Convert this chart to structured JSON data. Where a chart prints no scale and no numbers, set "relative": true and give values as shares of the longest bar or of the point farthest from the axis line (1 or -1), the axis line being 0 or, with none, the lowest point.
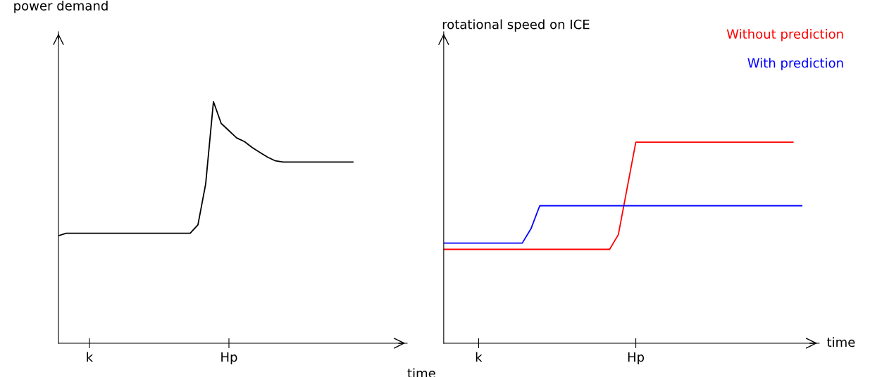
{
  "chart_data": [
    {
      "type": "line",
      "relative": true,
      "ylabel": "power demand",
      "xlabel": "time",
      "grid": false,
      "legend": false,
      "marker": "none",
      "line_style": "solid",
      "categories": [
        null,
        null,
        null,
        null,
        "k",
        null,
        null,
        null,
        null,
        null,
        null,
        null,
        null,
        null,
        null,
        null,
        null,
        null,
        null,
        null,
        null,
        null,
        "Hp",
        null,
        null,
        null,
        null,
        null,
        null,
        null,
        null,
        null,
        null,
        null,
        null,
        null,
        null,
        null,
        null,
        null,
        null,
        null,
        null,
        null,
        null,
        null
      ],
      "series": [
        {
          "color": "#000000",
          "values": [
            0.445,
            0.455,
            0.455,
            0.455,
            0.455,
            0.455,
            0.455,
            0.455,
            0.455,
            0.455,
            0.455,
            0.455,
            0.455,
            0.455,
            0.455,
            0.455,
            0.455,
            0.455,
            0.49,
            0.66,
            1.0,
            0.91,
            0.88,
            0.85,
            0.835,
            0.81,
            0.79,
            0.77,
            0.755,
            0.75,
            0.75,
            0.75,
            0.75,
            0.75,
            0.75,
            0.75,
            0.75,
            0.75,
            0.75,
            null,
            null,
            null,
            null,
            null,
            null,
            null
          ]
        }
      ]
    },
    {
      "type": "line",
      "relative": true,
      "ylabel": "rotational speed on ICE",
      "xlabel": "time",
      "grid": false,
      "legend": "top right",
      "marker": "none",
      "line_style": "solid",
      "categories": [
        null,
        null,
        null,
        null,
        "k",
        null,
        null,
        null,
        null,
        null,
        null,
        null,
        null,
        null,
        null,
        null,
        null,
        null,
        null,
        null,
        null,
        null,
        "Hp",
        null,
        null,
        null,
        null,
        null,
        null,
        null,
        null,
        null,
        null,
        null,
        null,
        null,
        null,
        null,
        null,
        null,
        null,
        null,
        null,
        null
      ],
      "series": [
        {
          "name": "Without prediction",
          "color": "#ff0000",
          "values": [
            0.467,
            0.467,
            0.467,
            0.467,
            0.467,
            0.467,
            0.467,
            0.467,
            0.467,
            0.467,
            0.467,
            0.467,
            0.467,
            0.467,
            0.467,
            0.467,
            0.467,
            0.467,
            0.467,
            0.467,
            0.54,
            0.77,
            1.0,
            1.0,
            1.0,
            1.0,
            1.0,
            1.0,
            1.0,
            1.0,
            1.0,
            1.0,
            1.0,
            1.0,
            1.0,
            1.0,
            1.0,
            1.0,
            1.0,
            1.0,
            1.0,
            null,
            null,
            null
          ]
        },
        {
          "name": "With prediction",
          "color": "#0000ff",
          "values": [
            0.498,
            0.498,
            0.498,
            0.498,
            0.498,
            0.498,
            0.498,
            0.498,
            0.498,
            0.498,
            0.57,
            0.684,
            0.684,
            0.684,
            0.684,
            0.684,
            0.684,
            0.684,
            0.684,
            0.684,
            0.684,
            0.684,
            0.684,
            0.684,
            0.684,
            0.684,
            0.684,
            0.684,
            0.684,
            0.684,
            0.684,
            0.684,
            0.684,
            0.684,
            0.684,
            0.684,
            0.684,
            0.684,
            0.684,
            0.684,
            0.684,
            0.684,
            null,
            null
          ]
        }
      ]
    }
  ]
}
